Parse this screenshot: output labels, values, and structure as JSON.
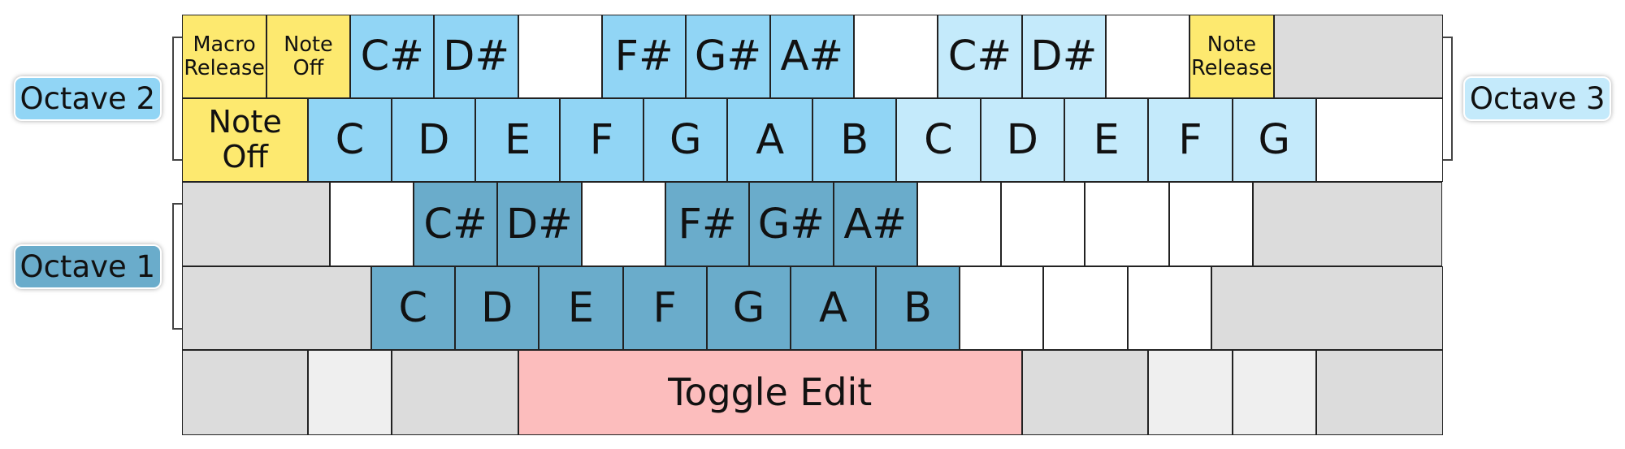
{
  "labels": {
    "octave_2": "Octave 2",
    "octave_3": "Octave 3",
    "octave_1": "Octave 1"
  },
  "rows": [
    [
      "Macro Release",
      "Note Off",
      "C#",
      "D#",
      "F#",
      "G#",
      "A#",
      "C#",
      "D#",
      "Note Release"
    ],
    [
      "Note Off",
      "C",
      "D",
      "E",
      "F",
      "G",
      "A",
      "B",
      "C",
      "D",
      "E",
      "F",
      "G"
    ],
    [
      "C#",
      "D#",
      "F#",
      "G#",
      "A#"
    ],
    [
      "C",
      "D",
      "E",
      "F",
      "G",
      "A",
      "B"
    ],
    [
      "Toggle Edit"
    ]
  ]
}
